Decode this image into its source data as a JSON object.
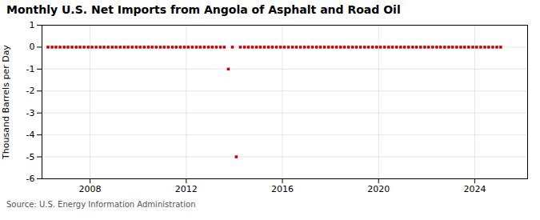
{
  "chart_data": {
    "type": "scatter",
    "title": "Monthly U.S. Net Imports from Angola of Asphalt and Road Oil",
    "ylabel": "Thousand Barrels per Day",
    "source": "Source: U.S. Energy Information Administration",
    "color": "#cc0000",
    "marker": "square",
    "grid": true,
    "xlim": [
      2006.0,
      2026.2
    ],
    "xticks": [
      2008,
      2012,
      2016,
      2020,
      2024
    ],
    "ylim": [
      -6,
      1
    ],
    "yticks": [
      1,
      0,
      -1,
      -2,
      -3,
      -4,
      -5,
      -6
    ],
    "x": [
      2006.25,
      2006.42,
      2006.58,
      2006.75,
      2006.92,
      2007.08,
      2007.25,
      2007.42,
      2007.58,
      2007.75,
      2007.92,
      2008.08,
      2008.25,
      2008.42,
      2008.58,
      2008.75,
      2008.92,
      2009.08,
      2009.25,
      2009.42,
      2009.58,
      2009.75,
      2009.92,
      2010.08,
      2010.25,
      2010.42,
      2010.58,
      2010.75,
      2010.92,
      2011.08,
      2011.25,
      2011.42,
      2011.58,
      2011.75,
      2011.92,
      2012.08,
      2012.25,
      2012.42,
      2012.58,
      2012.75,
      2012.92,
      2013.08,
      2013.25,
      2013.42,
      2013.58,
      2013.75,
      2013.92,
      2014.08,
      2014.25,
      2014.42,
      2014.58,
      2014.75,
      2014.92,
      2015.08,
      2015.25,
      2015.42,
      2015.58,
      2015.75,
      2015.92,
      2016.08,
      2016.25,
      2016.42,
      2016.58,
      2016.75,
      2016.92,
      2017.08,
      2017.25,
      2017.42,
      2017.58,
      2017.75,
      2017.92,
      2018.08,
      2018.25,
      2018.42,
      2018.58,
      2018.75,
      2018.92,
      2019.08,
      2019.25,
      2019.42,
      2019.58,
      2019.75,
      2019.92,
      2020.08,
      2020.25,
      2020.42,
      2020.58,
      2020.75,
      2020.92,
      2021.08,
      2021.25,
      2021.42,
      2021.58,
      2021.75,
      2021.92,
      2022.08,
      2022.25,
      2022.42,
      2022.58,
      2022.75,
      2022.92,
      2023.08,
      2023.25,
      2023.42,
      2023.58,
      2023.75,
      2023.92,
      2024.08,
      2024.25,
      2024.42,
      2024.58,
      2024.75,
      2024.92,
      2025.08
    ],
    "values": [
      0,
      0,
      0,
      0,
      0,
      0,
      0,
      0,
      0,
      0,
      0,
      0,
      0,
      0,
      0,
      0,
      0,
      0,
      0,
      0,
      0,
      0,
      0,
      0,
      0,
      0,
      0,
      0,
      0,
      0,
      0,
      0,
      0,
      0,
      0,
      0,
      0,
      0,
      0,
      0,
      0,
      0,
      0,
      0,
      0,
      -1,
      0,
      -5,
      0,
      0,
      0,
      0,
      0,
      0,
      0,
      0,
      0,
      0,
      0,
      0,
      0,
      0,
      0,
      0,
      0,
      0,
      0,
      0,
      0,
      0,
      0,
      0,
      0,
      0,
      0,
      0,
      0,
      0,
      0,
      0,
      0,
      0,
      0,
      0,
      0,
      0,
      0,
      0,
      0,
      0,
      0,
      0,
      0,
      0,
      0,
      0,
      0,
      0,
      0,
      0,
      0,
      0,
      0,
      0,
      0,
      0,
      0,
      0,
      0,
      0,
      0,
      0,
      0,
      0
    ]
  }
}
